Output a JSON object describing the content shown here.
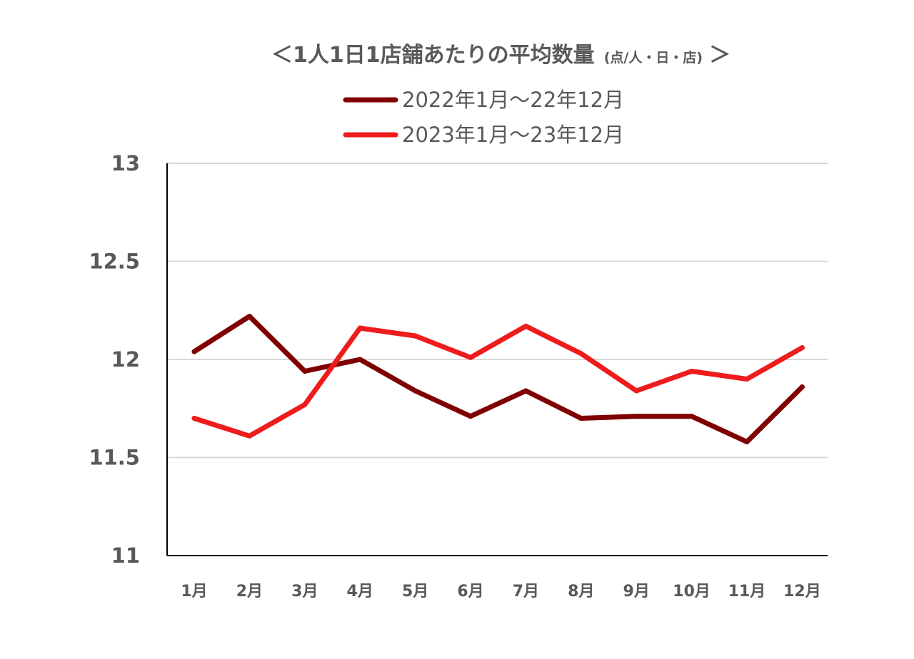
{
  "chart_data": {
    "type": "line",
    "title": "＜1人1日1店舗あたりの平均数量",
    "title_unit": "(点/人・日・店)",
    "title_end": "＞",
    "categories": [
      "1月",
      "2月",
      "3月",
      "4月",
      "5月",
      "6月",
      "7月",
      "8月",
      "9月",
      "10月",
      "11月",
      "12月"
    ],
    "series": [
      {
        "name": "2022年1月～22年12月",
        "color": "#7f0000",
        "values": [
          12.04,
          12.22,
          11.94,
          12.0,
          11.84,
          11.71,
          11.84,
          11.7,
          11.71,
          11.71,
          11.58,
          11.86
        ]
      },
      {
        "name": "2023年1月～23年12月",
        "color": "#ee1c1c",
        "values": [
          11.7,
          11.61,
          11.77,
          12.16,
          12.12,
          12.01,
          12.17,
          12.03,
          11.84,
          11.94,
          11.9,
          12.06
        ]
      }
    ],
    "ylim": [
      11,
      13
    ],
    "yticks": [
      11,
      11.5,
      12,
      12.5,
      13
    ],
    "ytick_labels": [
      "11",
      "11.5",
      "12",
      "12.5",
      "13"
    ],
    "grid": true,
    "legend_position": "top-center",
    "xlabel": "",
    "ylabel": ""
  }
}
